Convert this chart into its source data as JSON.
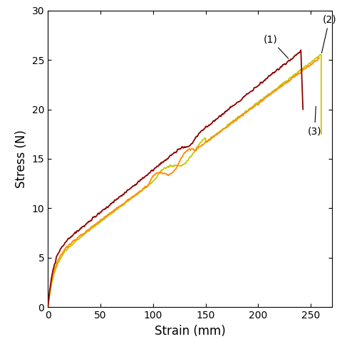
{
  "title": "",
  "xlabel": "Strain (mm)",
  "ylabel": "Stress (N)",
  "xlim": [
    0,
    270
  ],
  "ylim": [
    0,
    30
  ],
  "xticks": [
    0,
    50,
    100,
    150,
    200,
    250
  ],
  "yticks": [
    0,
    5,
    10,
    15,
    20,
    25,
    30
  ],
  "curve1_color": "#8B0000",
  "curve2_color": "#FF8C00",
  "curve3_color": "#C8C800",
  "figsize": [
    4.8,
    4.9
  ],
  "dpi": 100
}
